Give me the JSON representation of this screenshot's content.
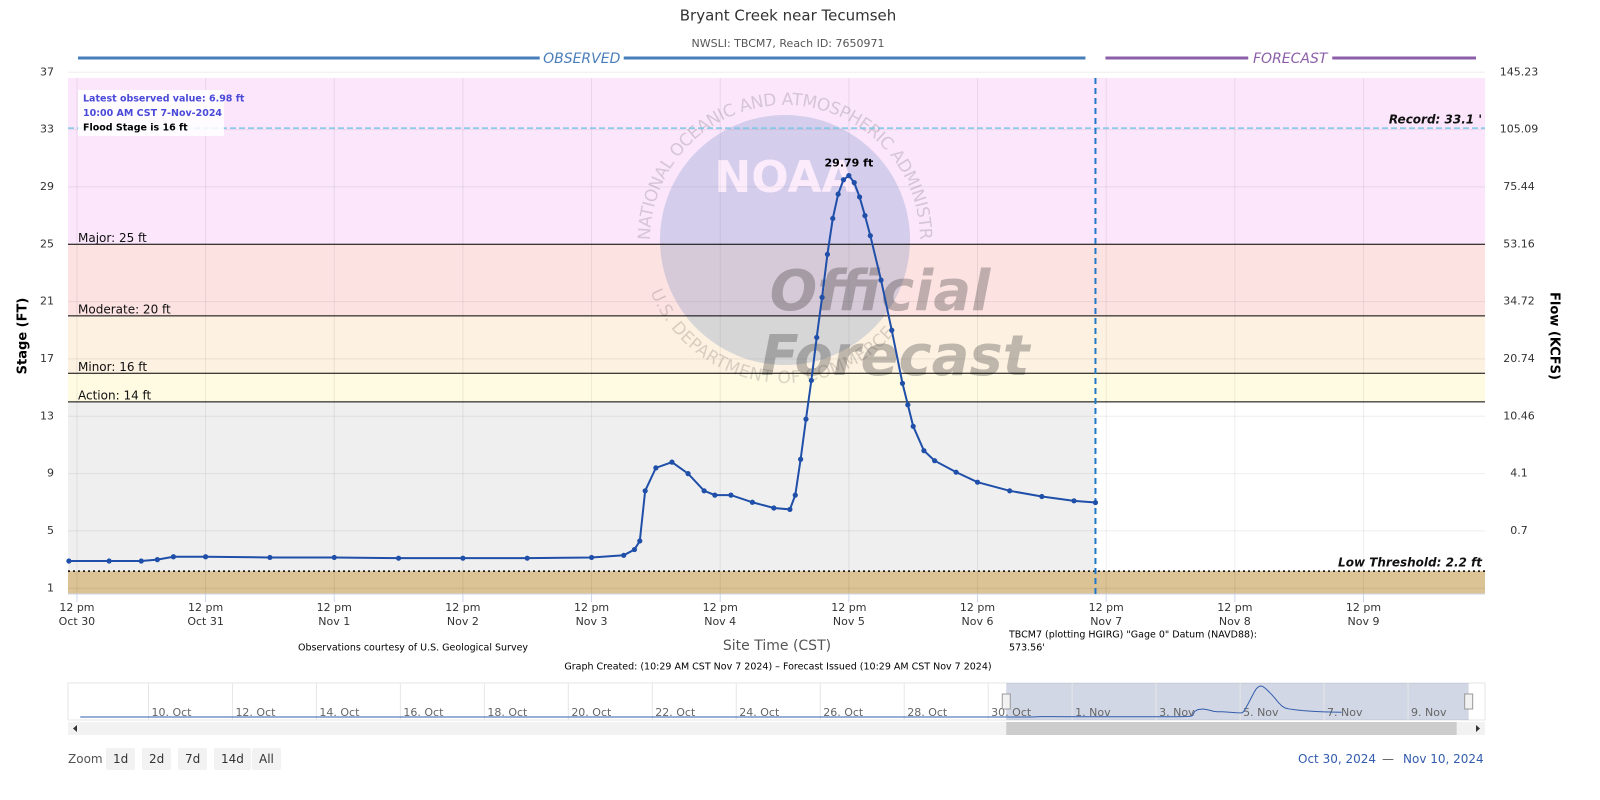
{
  "chart_data": {
    "type": "line",
    "title": "Bryant Creek near Tecumseh",
    "subtitle": "NWSLI: TBCM7, Reach ID: 7650971",
    "y_label": "Stage (FT)",
    "y2_label": "Flow (KCFS)",
    "x_label": "Site Time (CST)",
    "observed_label": "OBSERVED",
    "forecast_label": "FORECAST",
    "observed_color": "#4a7ebb",
    "forecast_color": "#8c5fa8",
    "forecast_start": "2024-11-07T10:00",
    "xlim": [
      "2024-10-30T10:20",
      "2024-11-10T10:40"
    ],
    "xticks": [
      {
        "value": "2024-10-30T12:00",
        "label": [
          "12 pm",
          "Oct 30"
        ]
      },
      {
        "value": "2024-10-31T12:00",
        "label": [
          "12 pm",
          "Oct 31"
        ]
      },
      {
        "value": "2024-11-01T12:00",
        "label": [
          "12 pm",
          "Nov 1"
        ]
      },
      {
        "value": "2024-11-02T12:00",
        "label": [
          "12 pm",
          "Nov 2"
        ]
      },
      {
        "value": "2024-11-03T12:00",
        "label": [
          "12 pm",
          "Nov 3"
        ]
      },
      {
        "value": "2024-11-04T12:00",
        "label": [
          "12 pm",
          "Nov 4"
        ]
      },
      {
        "value": "2024-11-05T12:00",
        "label": [
          "12 pm",
          "Nov 5"
        ]
      },
      {
        "value": "2024-11-06T12:00",
        "label": [
          "12 pm",
          "Nov 6"
        ]
      },
      {
        "value": "2024-11-07T12:00",
        "label": [
          "12 pm",
          "Nov 7"
        ]
      },
      {
        "value": "2024-11-08T12:00",
        "label": [
          "12 pm",
          "Nov 8"
        ]
      },
      {
        "value": "2024-11-09T12:00",
        "label": [
          "12 pm",
          "Nov 9"
        ]
      }
    ],
    "ylim": [
      0.6,
      36.6
    ],
    "yticks": [
      1,
      5,
      9,
      13,
      17,
      21,
      25,
      29,
      33,
      37
    ],
    "flow_ticks": [
      {
        "stage": 5,
        "flow": 0.7
      },
      {
        "stage": 9,
        "flow": 4.1
      },
      {
        "stage": 13,
        "flow": 10.46
      },
      {
        "stage": 17,
        "flow": 20.74
      },
      {
        "stage": 21,
        "flow": 34.72
      },
      {
        "stage": 25,
        "flow": 53.16
      },
      {
        "stage": 29,
        "flow": 75.44
      },
      {
        "stage": 33,
        "flow": 105.09
      },
      {
        "stage": 37,
        "flow": 145.23
      }
    ],
    "grid": true,
    "observed_fill": "#efefef",
    "thresholds": [
      {
        "label": "Record: 33.1 '",
        "value": 33.1,
        "line_color": "#7cc8e6",
        "line_style": "dashed",
        "label_side": "right"
      },
      {
        "label": "Major: 25 ft",
        "value": 25,
        "line_color": "#000000",
        "line_style": "solid",
        "label_side": "left",
        "band_color": "#fbe6fb",
        "band": "above"
      },
      {
        "label": "Moderate: 20 ft",
        "value": 20,
        "line_color": "#000000",
        "line_style": "solid",
        "label_side": "left",
        "band_color": "#fde2e2",
        "band": "above"
      },
      {
        "label": "Minor: 16 ft",
        "value": 16,
        "line_color": "#000000",
        "line_style": "solid",
        "label_side": "left",
        "band_color": "#fdf1e1",
        "band": "above"
      },
      {
        "label": "Action: 14 ft",
        "value": 14,
        "line_color": "#000000",
        "line_style": "solid",
        "label_side": "left",
        "band_color": "#fefbe2",
        "band": "above"
      },
      {
        "label": "Low Threshold: 2.2 ft",
        "value": 2.2,
        "line_color": "#000000",
        "line_style": "dotted",
        "label_side": "right",
        "band_color": "#dcc395",
        "band": "below"
      }
    ],
    "info": [
      "Latest observed value: 6.98 ft",
      "10:00 AM CST 7-Nov-2024",
      "Flood Stage is 16 ft"
    ],
    "annotations": [
      {
        "text": "29.79 ft",
        "x": "2024-11-05T12:00",
        "y": 29.79
      }
    ],
    "watermark": {
      "logo": "NOAA",
      "ring_top": "NATIONAL OCEANIC AND ATMOSPHERIC ADMINISTRATION",
      "ring_bottom": "U.S. DEPARTMENT OF COMMERCE",
      "lines": [
        "Official",
        "Forecast"
      ]
    },
    "series": [
      {
        "name": "Observed",
        "color": "#1f4fa8",
        "x": [
          "2024-10-30T10:30",
          "2024-10-30T18:00",
          "2024-10-31T00:00",
          "2024-10-31T03:00",
          "2024-10-31T06:00",
          "2024-10-31T12:00",
          "2024-11-01T00:00",
          "2024-11-01T12:00",
          "2024-11-02T00:00",
          "2024-11-02T12:00",
          "2024-11-03T00:00",
          "2024-11-03T12:00",
          "2024-11-03T18:00",
          "2024-11-03T20:00",
          "2024-11-03T21:00",
          "2024-11-03T22:00",
          "2024-11-04T00:00",
          "2024-11-04T03:00",
          "2024-11-04T06:00",
          "2024-11-04T09:00",
          "2024-11-04T11:00",
          "2024-11-04T14:00",
          "2024-11-04T18:00",
          "2024-11-04T22:00",
          "2024-11-05T01:00",
          "2024-11-05T02:00",
          "2024-11-05T03:00",
          "2024-11-05T04:00",
          "2024-11-05T05:00",
          "2024-11-05T06:00",
          "2024-11-05T07:00",
          "2024-11-05T08:00",
          "2024-11-05T09:00",
          "2024-11-05T10:00",
          "2024-11-05T11:00",
          "2024-11-05T12:00",
          "2024-11-05T13:00",
          "2024-11-05T14:00",
          "2024-11-05T15:00",
          "2024-11-05T16:00",
          "2024-11-05T18:00",
          "2024-11-05T20:00",
          "2024-11-05T22:00",
          "2024-11-05T23:00",
          "2024-11-06T00:00",
          "2024-11-06T02:00",
          "2024-11-06T04:00",
          "2024-11-06T08:00",
          "2024-11-06T12:00",
          "2024-11-06T18:00",
          "2024-11-07T00:00",
          "2024-11-07T06:00",
          "2024-11-07T10:00"
        ],
        "values": [
          2.9,
          2.9,
          2.9,
          3.0,
          3.2,
          3.2,
          3.15,
          3.15,
          3.1,
          3.1,
          3.1,
          3.15,
          3.3,
          3.7,
          4.3,
          7.8,
          9.4,
          9.8,
          9.0,
          7.8,
          7.5,
          7.5,
          7.0,
          6.6,
          6.5,
          7.5,
          10.0,
          12.8,
          15.5,
          18.5,
          21.3,
          24.3,
          26.8,
          28.5,
          29.5,
          29.79,
          29.3,
          28.3,
          27.0,
          25.6,
          22.5,
          19.0,
          15.3,
          13.8,
          12.3,
          10.6,
          9.9,
          9.1,
          8.4,
          7.8,
          7.4,
          7.1,
          6.98
        ]
      }
    ],
    "footer": {
      "credit": "Observations courtesy of U.S. Geological Survey",
      "datum": [
        "TBCM7 (plotting HGIRG) \"Gage 0\" Datum (NAVD88):",
        "573.56'"
      ],
      "created": "Graph Created: (10:29 AM CST Nov 7 2024) – Forecast Issued (10:29 AM CST Nov 7 2024)"
    },
    "navigator": {
      "xlim": [
        "2024-10-08T02:00",
        "2024-11-10T20:00"
      ],
      "ylim": [
        0.3,
        32.4
      ],
      "x": [
        "2024-10-08T09:00",
        "2024-10-30T10:30"
      ],
      "values": [
        2.9,
        2.9
      ],
      "ticks": [
        {
          "value": "2024-10-10T00:00",
          "label": "10. Oct"
        },
        {
          "value": "2024-10-12T00:00",
          "label": "12. Oct"
        },
        {
          "value": "2024-10-14T00:00",
          "label": "14. Oct"
        },
        {
          "value": "2024-10-16T00:00",
          "label": "16. Oct"
        },
        {
          "value": "2024-10-18T00:00",
          "label": "18. Oct"
        },
        {
          "value": "2024-10-20T00:00",
          "label": "20. Oct"
        },
        {
          "value": "2024-10-22T00:00",
          "label": "22. Oct"
        },
        {
          "value": "2024-10-24T00:00",
          "label": "24. Oct"
        },
        {
          "value": "2024-10-26T00:00",
          "label": "26. Oct"
        },
        {
          "value": "2024-10-28T00:00",
          "label": "28. Oct"
        },
        {
          "value": "2024-10-30T00:00",
          "label": "30. Oct"
        },
        {
          "value": "2024-11-01T00:00",
          "label": "1. Nov"
        },
        {
          "value": "2024-11-03T00:00",
          "label": "3. Nov"
        },
        {
          "value": "2024-11-05T00:00",
          "label": "5. Nov"
        },
        {
          "value": "2024-11-07T00:00",
          "label": "7. Nov"
        },
        {
          "value": "2024-11-09T00:00",
          "label": "9. Nov"
        }
      ]
    },
    "zoom": {
      "label": "Zoom",
      "buttons": [
        "1d",
        "2d",
        "7d",
        "14d",
        "All"
      ]
    },
    "range": {
      "from": "Oct 30, 2024",
      "separator": "—",
      "to": "Nov 10, 2024"
    }
  }
}
